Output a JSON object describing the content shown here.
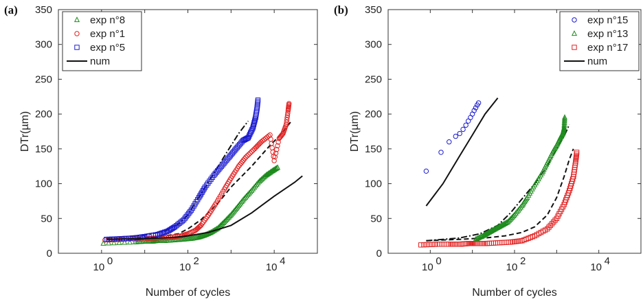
{
  "chart_data": [
    {
      "panel_label": "(a)",
      "type": "scatter",
      "xlabel": "Number of cycles",
      "ylabel": "DTr(µm)",
      "xscale": "log",
      "xlim": [
        0.1,
        100000
      ],
      "ylim": [
        0,
        350
      ],
      "xticks": [
        1,
        100,
        10000
      ],
      "xtick_labels": [
        "10^0",
        "10^2",
        "10^4"
      ],
      "yticks": [
        0,
        50,
        100,
        150,
        200,
        250,
        300,
        350
      ],
      "grid": false,
      "legend_position": "top-left",
      "series": [
        {
          "name": "exp n°8",
          "marker": "triangle",
          "color": "#1a8a1a",
          "x": [
            1.1,
            6,
            10,
            15,
            20,
            30,
            50,
            80,
            120,
            180,
            250,
            350,
            500,
            700,
            1000,
            1400,
            2000,
            3000,
            4500,
            6500,
            9000,
            12000
          ],
          "y": [
            14,
            16,
            17,
            17,
            18,
            18,
            19,
            20,
            21,
            23,
            26,
            30,
            36,
            45,
            55,
            66,
            78,
            90,
            103,
            112,
            118,
            123
          ]
        },
        {
          "name": "exp n°1",
          "marker": "circle",
          "color": "#e02020",
          "x": [
            1.2,
            3,
            10,
            20,
            40,
            70,
            100,
            150,
            200,
            300,
            450,
            700,
            1000,
            1500,
            2200,
            3500,
            5000,
            8000,
            10000,
            13000,
            16000,
            19000,
            21000,
            22000
          ],
          "y": [
            19,
            20,
            21,
            22,
            23,
            25,
            28,
            33,
            40,
            55,
            72,
            92,
            108,
            125,
            138,
            150,
            160,
            170,
            133,
            165,
            172,
            185,
            205,
            215
          ]
        },
        {
          "name": "exp n°5",
          "marker": "square",
          "color": "#1a1ad0",
          "x": [
            1.3,
            3,
            6,
            10,
            20,
            35,
            50,
            80,
            120,
            180,
            250,
            400,
            600,
            900,
            1300,
            1900,
            2500,
            3200,
            3700,
            4000,
            4200
          ],
          "y": [
            20,
            21,
            22,
            24,
            27,
            32,
            38,
            48,
            62,
            80,
            95,
            112,
            125,
            138,
            150,
            162,
            166,
            180,
            195,
            208,
            220
          ]
        },
        {
          "name": "num",
          "style": "solid-line",
          "color": "#111111",
          "x": [
            1.3,
            10,
            50,
            100,
            300,
            1000,
            3000,
            10000,
            30000,
            45000
          ],
          "y": [
            20,
            21,
            23,
            25,
            30,
            40,
            58,
            82,
            102,
            111
          ]
        }
      ],
      "extra_lines": [
        {
          "style": "dash-dot",
          "color": "#111111",
          "x": [
            1.3,
            10,
            30,
            60,
            100,
            200,
            400,
            800,
            1500,
            2500
          ],
          "y": [
            22,
            26,
            32,
            42,
            55,
            85,
            115,
            145,
            172,
            190
          ]
        },
        {
          "style": "dashed",
          "color": "#111111",
          "x": [
            1.3,
            10,
            30,
            60,
            100,
            200,
            500,
            1000,
            3000,
            8000,
            15000,
            25000
          ],
          "y": [
            20,
            22,
            25,
            28,
            35,
            48,
            72,
            95,
            125,
            155,
            172,
            190
          ]
        }
      ]
    },
    {
      "panel_label": "(b)",
      "type": "scatter",
      "xlabel": "Number of cycles",
      "ylabel": "DTr(µm)",
      "xscale": "log",
      "xlim": [
        0.1,
        100000
      ],
      "ylim": [
        0,
        350
      ],
      "xticks": [
        1,
        100,
        10000
      ],
      "xtick_labels": [
        "10^0",
        "10^2",
        "10^4"
      ],
      "yticks": [
        0,
        50,
        100,
        150,
        200,
        250,
        300,
        350
      ],
      "grid": false,
      "legend_position": "top-right",
      "series": [
        {
          "name": "exp n°15",
          "marker": "circle",
          "color": "#1a1ad0",
          "x": [
            0.8,
            1.8,
            2.8,
            4,
            5,
            6,
            7,
            8,
            9,
            10,
            11,
            12,
            13,
            14
          ],
          "y": [
            118,
            145,
            160,
            168,
            172,
            178,
            184,
            190,
            195,
            200,
            205,
            209,
            213,
            216
          ]
        },
        {
          "name": "exp n°13",
          "marker": "triangle",
          "color": "#1a8a1a",
          "x": [
            12,
            18,
            25,
            35,
            50,
            70,
            100,
            150,
            200,
            300,
            450,
            600,
            800,
            1000,
            1200,
            1400,
            1500,
            1550
          ],
          "y": [
            20,
            25,
            30,
            35,
            40,
            45,
            55,
            68,
            80,
            98,
            115,
            130,
            145,
            155,
            165,
            172,
            180,
            195
          ]
        },
        {
          "name": "exp n°17",
          "marker": "square",
          "color": "#e02020",
          "x": [
            0.6,
            1.5,
            3,
            5,
            8,
            12,
            20,
            40,
            80,
            150,
            300,
            600,
            1000,
            1500,
            2000,
            2500,
            2800,
            3000
          ],
          "y": [
            12,
            13,
            13,
            13,
            14,
            14,
            14,
            15,
            16,
            18,
            25,
            35,
            50,
            70,
            90,
            110,
            130,
            145
          ]
        },
        {
          "name": "num",
          "style": "solid-line",
          "color": "#111111",
          "x": [
            0.8,
            2,
            5,
            10,
            20,
            40
          ],
          "y": [
            68,
            100,
            140,
            170,
            200,
            223
          ]
        }
      ],
      "extra_lines": [
        {
          "style": "dash-dot",
          "color": "#111111",
          "x": [
            0.8,
            5,
            15,
            40,
            80,
            150,
            300,
            600,
            1000,
            1500,
            2000
          ],
          "y": [
            18,
            22,
            28,
            40,
            58,
            78,
            100,
            125,
            150,
            168,
            185
          ]
        },
        {
          "style": "dashed",
          "color": "#111111",
          "x": [
            0.8,
            5,
            20,
            60,
            150,
            300,
            600,
            1000,
            1500,
            2000,
            2500
          ],
          "y": [
            18,
            20,
            22,
            25,
            30,
            38,
            55,
            80,
            110,
            135,
            150
          ]
        }
      ]
    }
  ]
}
